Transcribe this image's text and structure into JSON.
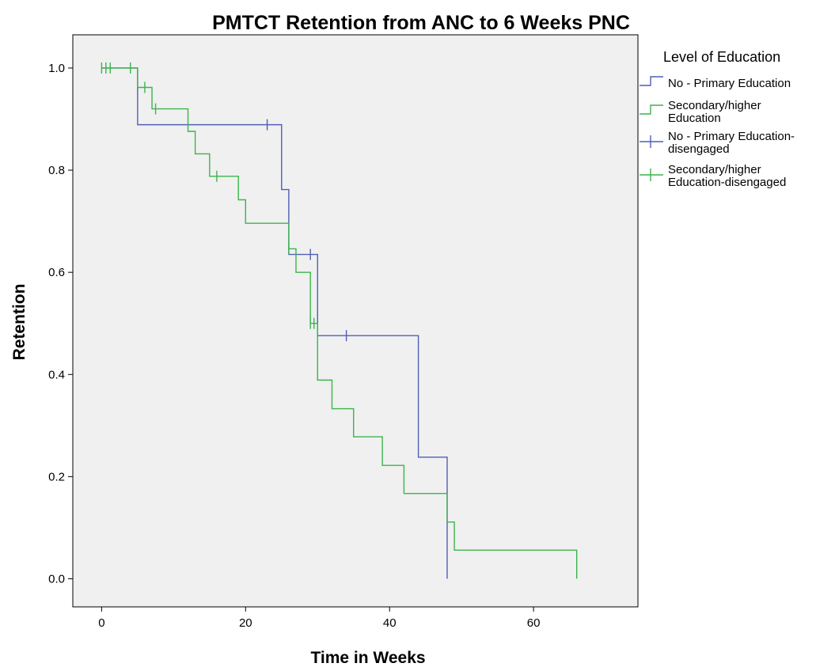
{
  "chart_data": {
    "type": "line",
    "subtype": "kaplan-meier-step",
    "title": "PMTCT Retention from ANC to 6 Weeks PNC",
    "xlabel": "Time in Weeks",
    "ylabel": "Retention",
    "xlim": [
      -4,
      74.5
    ],
    "ylim": [
      -0.055,
      1.065
    ],
    "xticks": [
      0,
      20,
      40,
      60
    ],
    "yticks": [
      0.0,
      0.2,
      0.4,
      0.6,
      0.8,
      1.0
    ],
    "xtick_labels": [
      "0",
      "20",
      "40",
      "60"
    ],
    "ytick_labels": [
      "0.0",
      "0.2",
      "0.4",
      "0.6",
      "0.8",
      "1.0"
    ],
    "grid": false,
    "plot_background": "#f0f0f0",
    "legend": {
      "title": "Level of Education",
      "placement": "right",
      "entries": [
        {
          "lines": [
            "No -  Primary Education"
          ],
          "symbol": "step",
          "color": "#4f5fb6"
        },
        {
          "lines": [
            "Secondary/higher",
            "Education"
          ],
          "symbol": "step",
          "color": "#3cb44b"
        },
        {
          "lines": [
            "No -  Primary Education-",
            "disengaged"
          ],
          "symbol": "cross",
          "color": "#4f5fb6"
        },
        {
          "lines": [
            "Secondary/higher",
            "Education-disengaged"
          ],
          "symbol": "cross",
          "color": "#3cb44b"
        }
      ]
    },
    "series": [
      {
        "name": "No -  Primary Education",
        "color": "#4f5fb6",
        "x": [
          0,
          5,
          25,
          26,
          30,
          44,
          48
        ],
        "y": [
          1.0,
          0.889,
          0.762,
          0.635,
          0.476,
          0.238,
          0.0
        ],
        "censored": [
          [
            23,
            0.889
          ],
          [
            29,
            0.635
          ],
          [
            34,
            0.476
          ]
        ]
      },
      {
        "name": "Secondary/higher Education",
        "color": "#3cb44b",
        "x": [
          0,
          5,
          7,
          12,
          13,
          15,
          19,
          20,
          26,
          27,
          29,
          30,
          32,
          35,
          39,
          42,
          48,
          49,
          66
        ],
        "y": [
          1.0,
          0.962,
          0.92,
          0.876,
          0.832,
          0.788,
          0.742,
          0.696,
          0.646,
          0.6,
          0.5,
          0.389,
          0.333,
          0.278,
          0.222,
          0.167,
          0.111,
          0.056,
          0.0
        ],
        "censored": [
          [
            0,
            1.0
          ],
          [
            0.6,
            1.0
          ],
          [
            1.2,
            1.0
          ],
          [
            4,
            1.0
          ],
          [
            6,
            0.962
          ],
          [
            7.5,
            0.92
          ],
          [
            16,
            0.788
          ],
          [
            26,
            0.646
          ],
          [
            29,
            0.5
          ],
          [
            29.5,
            0.5
          ]
        ]
      }
    ]
  }
}
